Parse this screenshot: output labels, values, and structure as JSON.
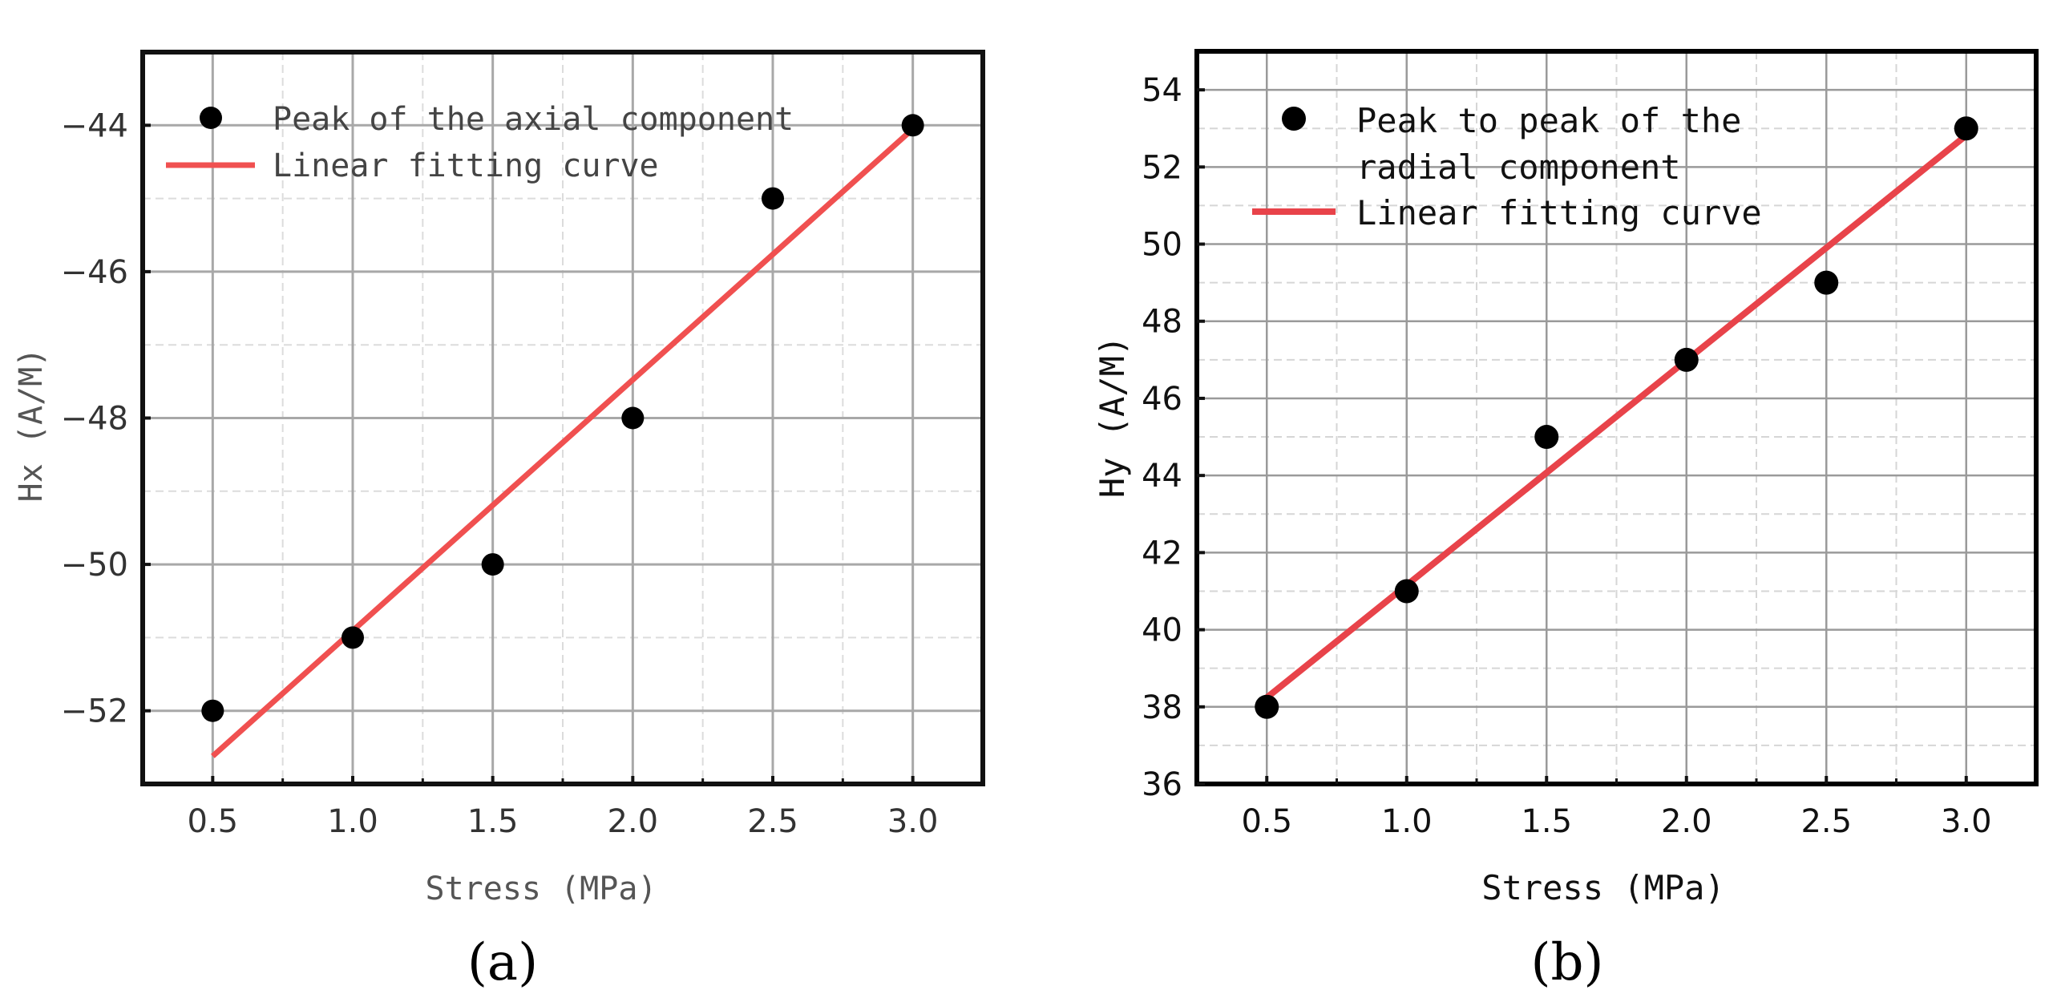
{
  "chart_data": [
    {
      "type": "scatter",
      "panel_label": "(a)",
      "xlabel": "Stress (MPa)",
      "ylabel": "Hx (A/M)",
      "xlim": [
        0.25,
        3.25
      ],
      "ylim": [
        -53.0,
        -43.0
      ],
      "xticks": [
        0.5,
        1.0,
        1.5,
        2.0,
        2.5,
        3.0
      ],
      "xtick_labels": [
        "0.5",
        "1.0",
        "1.5",
        "2.0",
        "2.5",
        "3.0"
      ],
      "yticks": [
        -52,
        -50,
        -48,
        -46,
        -44
      ],
      "ytick_labels": [
        "−52",
        "−50",
        "−48",
        "−46",
        "−44"
      ],
      "grid": true,
      "legend_position": "top-left",
      "series": [
        {
          "name": "Peak of the axial component",
          "kind": "scatter",
          "color": "#000000",
          "x": [
            0.5,
            1.0,
            1.5,
            2.0,
            2.5,
            3.0
          ],
          "y": [
            -52,
            -51,
            -50,
            -48,
            -45,
            -44
          ]
        },
        {
          "name": "Linear fitting curve",
          "kind": "line",
          "color": "#f05050",
          "x": [
            0.5,
            3.0
          ],
          "y": [
            -52.62,
            -44.05
          ]
        }
      ]
    },
    {
      "type": "scatter",
      "panel_label": "(b)",
      "xlabel": "Stress (MPa)",
      "ylabel": "Hy (A/M)",
      "xlim": [
        0.25,
        3.25
      ],
      "ylim": [
        36,
        55
      ],
      "xticks": [
        0.5,
        1.0,
        1.5,
        2.0,
        2.5,
        3.0
      ],
      "xtick_labels": [
        "0.5",
        "1.0",
        "1.5",
        "2.0",
        "2.5",
        "3.0"
      ],
      "yticks": [
        36,
        38,
        40,
        42,
        44,
        46,
        48,
        50,
        52,
        54
      ],
      "ytick_labels": [
        "36",
        "38",
        "40",
        "42",
        "44",
        "46",
        "48",
        "50",
        "52",
        "54"
      ],
      "grid": true,
      "legend_position": "top-left",
      "series": [
        {
          "name": "Peak to peak of the radial component",
          "kind": "scatter",
          "color": "#000000",
          "x": [
            0.5,
            1.0,
            1.5,
            2.0,
            2.5,
            3.0
          ],
          "y": [
            38,
            41,
            45,
            47,
            49,
            53
          ]
        },
        {
          "name": "Linear fitting curve",
          "kind": "line",
          "color": "#e8434a",
          "x": [
            0.5,
            3.0
          ],
          "y": [
            38.24,
            52.82
          ]
        }
      ]
    }
  ]
}
